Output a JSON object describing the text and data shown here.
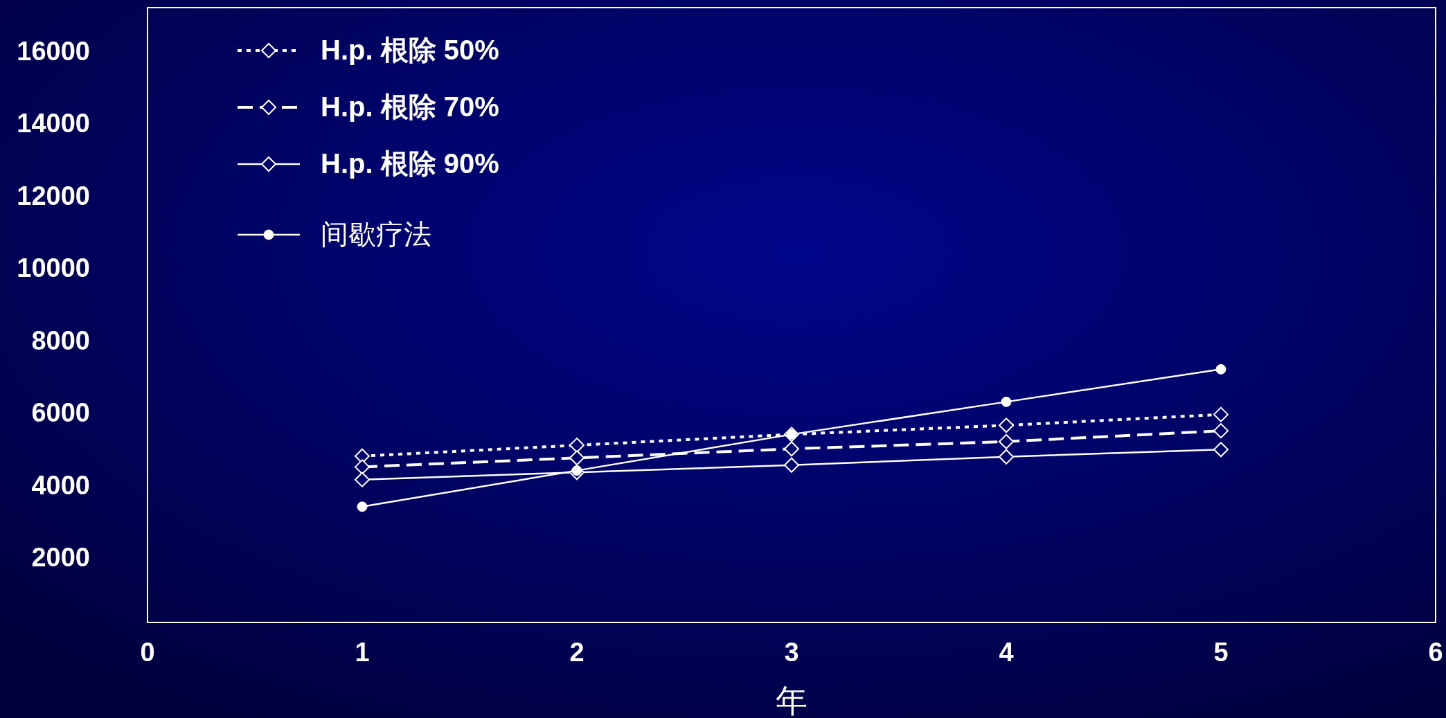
{
  "chart_data": {
    "type": "line",
    "xlabel": "年",
    "xlim": [
      0,
      6
    ],
    "xticks": [
      0,
      1,
      2,
      3,
      4,
      5,
      6
    ],
    "ylim": [
      200,
      17200
    ],
    "yticks": [
      2000,
      4000,
      6000,
      8000,
      10000,
      12000,
      14000,
      16000
    ],
    "x": [
      1,
      2,
      3,
      4,
      5
    ],
    "grid": false,
    "legend": "top left",
    "series": [
      {
        "name": "H.p. 根除 50%",
        "color": "#ffffff",
        "line_style": "dotted",
        "marker": "diamond",
        "values": [
          4800,
          5100,
          5400,
          5650,
          5950
        ]
      },
      {
        "name": "H.p. 根除 70%",
        "color": "#ffffff",
        "line_style": "dashed",
        "marker": "diamond",
        "values": [
          4500,
          4750,
          5000,
          5200,
          5500
        ]
      },
      {
        "name": "H.p. 根除 90%",
        "color": "#ffffff",
        "line_style": "solid",
        "marker": "diamond",
        "values": [
          4150,
          4350,
          4550,
          4780,
          4980
        ]
      },
      {
        "name": "间歇疗法",
        "color": "#ffffff",
        "line_style": "solid",
        "marker": "circle",
        "values": [
          3400,
          4400,
          5400,
          6300,
          7200
        ]
      }
    ]
  }
}
